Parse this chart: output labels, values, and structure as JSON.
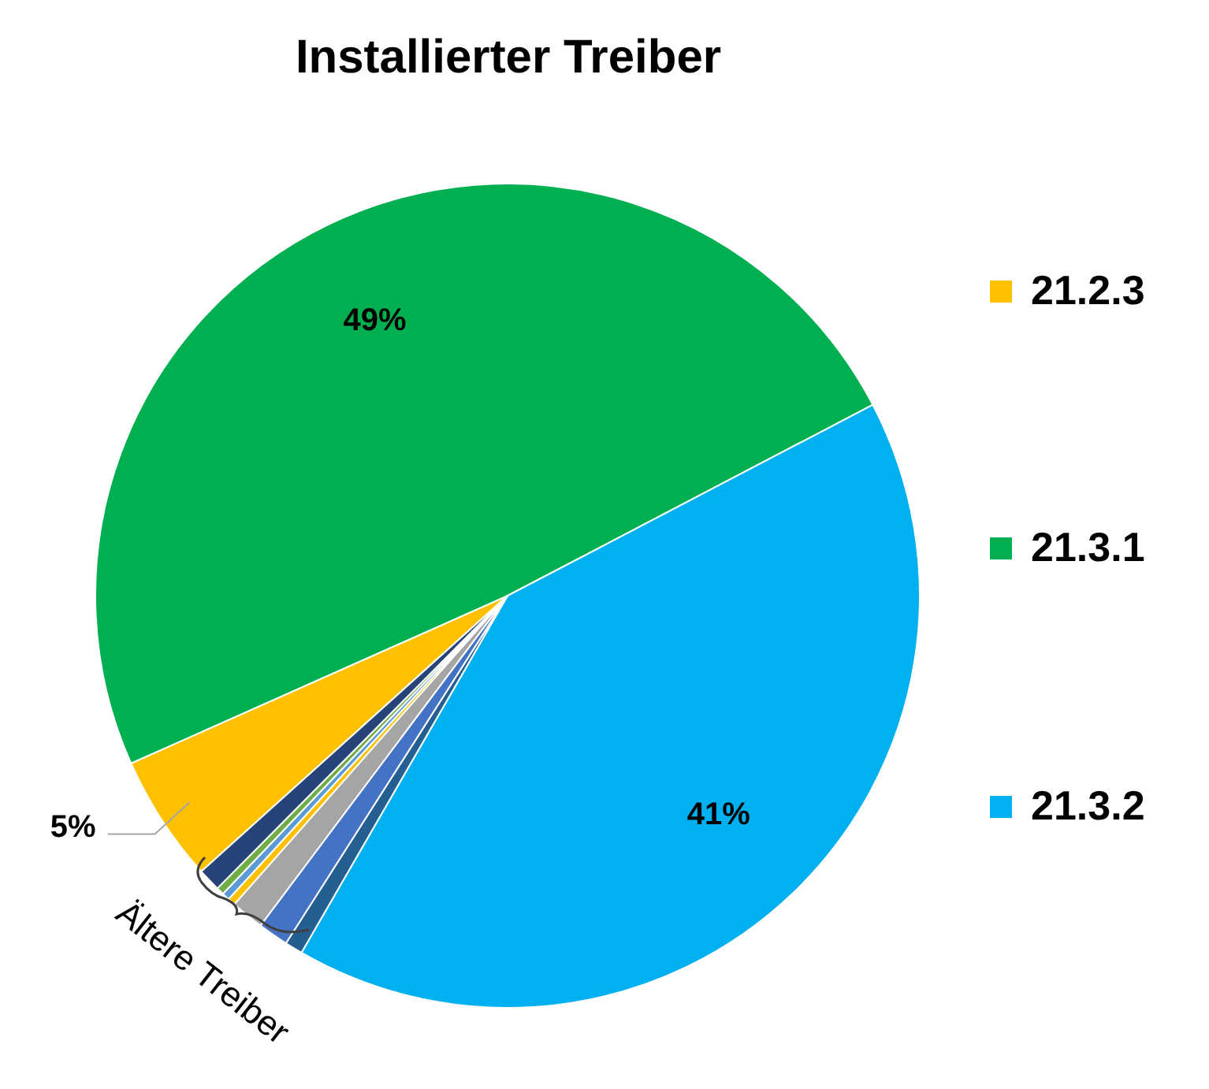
{
  "chart_data": {
    "type": "pie",
    "title": "Installierter Treiber",
    "categories": [
      "21.2.3",
      "21.3.1",
      "21.3.2",
      null,
      null,
      null,
      null,
      null,
      null,
      null
    ],
    "values": [
      5,
      49,
      41,
      0.7,
      1.2,
      1.3,
      0.3,
      0.3,
      0.3,
      0.9
    ],
    "colors": [
      "#ffc000",
      "#00b050",
      "#00b0f0",
      "#255e91",
      "#4472c4",
      "#a5a5a5",
      "#ffc000",
      "#5b9bd5",
      "#70ad47",
      "#264478"
    ],
    "value_labels": [
      "5%",
      "49%",
      "41%",
      null,
      null,
      null,
      null,
      null,
      null,
      null
    ],
    "legend": "right",
    "annotations": [
      "Ältere Treiber"
    ]
  }
}
